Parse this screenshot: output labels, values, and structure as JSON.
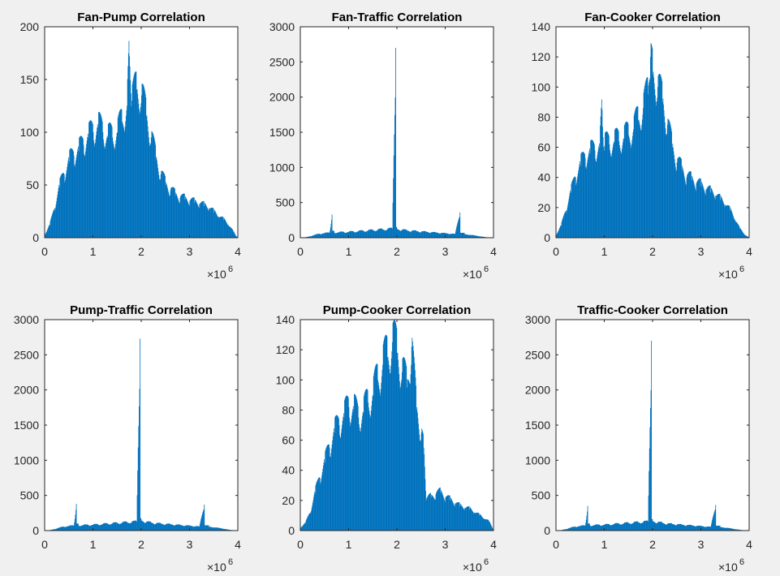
{
  "figure": {
    "background": "#f0f0f0",
    "bar_color": "#0072bd"
  },
  "chart_data": [
    {
      "type": "bar",
      "title": "Fan-Pump Correlation",
      "xlim": [
        0,
        4000000
      ],
      "ylim": [
        0,
        200
      ],
      "xticks": [
        0,
        1,
        2,
        3,
        4
      ],
      "yticks": [
        0,
        50,
        100,
        150,
        200
      ],
      "x_exponent": "6",
      "x": [
        0,
        100000,
        200000,
        300000,
        400000,
        500000,
        600000,
        700000,
        800000,
        900000,
        1000000,
        1100000,
        1200000,
        1300000,
        1400000,
        1500000,
        1600000,
        1700000,
        1750000,
        1800000,
        1900000,
        2000000,
        2100000,
        2200000,
        2300000,
        2400000,
        2500000,
        2600000,
        2700000,
        2800000,
        2900000,
        3000000,
        3100000,
        3200000,
        3300000,
        3400000,
        3500000,
        3600000,
        3700000,
        3800000,
        3900000,
        3950000
      ],
      "values": [
        3,
        12,
        28,
        48,
        60,
        72,
        78,
        82,
        88,
        95,
        100,
        105,
        100,
        95,
        95,
        100,
        110,
        125,
        172,
        130,
        140,
        135,
        115,
        95,
        75,
        60,
        50,
        45,
        40,
        38,
        36,
        35,
        33,
        32,
        30,
        28,
        24,
        20,
        17,
        12,
        6,
        2
      ]
    },
    {
      "type": "bar",
      "title": "Fan-Traffic Correlation",
      "xlim": [
        0,
        4000000
      ],
      "ylim": [
        0,
        3000
      ],
      "xticks": [
        0,
        1,
        2,
        3,
        4
      ],
      "yticks": [
        0,
        500,
        1000,
        1500,
        2000,
        2500,
        3000
      ],
      "x_exponent": "6",
      "x": [
        0,
        100000,
        200000,
        300000,
        400000,
        500000,
        600000,
        650000,
        700000,
        800000,
        900000,
        1000000,
        1100000,
        1200000,
        1300000,
        1400000,
        1500000,
        1600000,
        1700000,
        1800000,
        1900000,
        1970000,
        2000000,
        2100000,
        2200000,
        2300000,
        2400000,
        2500000,
        2600000,
        2700000,
        2800000,
        2900000,
        3000000,
        3100000,
        3200000,
        3300000,
        3400000,
        3500000,
        3600000,
        3700000,
        3800000,
        3900000
      ],
      "values": [
        0,
        5,
        20,
        40,
        55,
        62,
        70,
        330,
        72,
        75,
        78,
        80,
        85,
        90,
        95,
        100,
        105,
        110,
        115,
        120,
        125,
        2700,
        120,
        110,
        100,
        95,
        90,
        85,
        80,
        75,
        70,
        65,
        60,
        55,
        50,
        360,
        45,
        40,
        30,
        20,
        10,
        2
      ]
    },
    {
      "type": "bar",
      "title": "Fan-Cooker Correlation",
      "xlim": [
        0,
        4000000
      ],
      "ylim": [
        0,
        140
      ],
      "xticks": [
        0,
        1,
        2,
        3,
        4
      ],
      "yticks": [
        0,
        20,
        40,
        60,
        80,
        100,
        120,
        140
      ],
      "x_exponent": "6",
      "x": [
        0,
        100000,
        200000,
        300000,
        400000,
        500000,
        600000,
        700000,
        800000,
        900000,
        950000,
        1000000,
        1100000,
        1200000,
        1300000,
        1400000,
        1500000,
        1600000,
        1700000,
        1800000,
        1900000,
        1950000,
        2000000,
        2100000,
        2200000,
        2300000,
        2400000,
        2500000,
        2600000,
        2700000,
        2800000,
        2900000,
        3000000,
        3100000,
        3200000,
        3300000,
        3400000,
        3500000,
        3600000,
        3700000,
        3800000,
        3900000
      ],
      "values": [
        2,
        8,
        18,
        30,
        40,
        48,
        53,
        56,
        58,
        60,
        85,
        61,
        62,
        63,
        64,
        66,
        68,
        72,
        78,
        86,
        95,
        120,
        108,
        100,
        90,
        75,
        60,
        50,
        45,
        40,
        38,
        36,
        34,
        32,
        30,
        28,
        25,
        22,
        18,
        12,
        6,
        2
      ]
    },
    {
      "type": "bar",
      "title": "Pump-Traffic Correlation",
      "xlim": [
        0,
        4000000
      ],
      "ylim": [
        0,
        3000
      ],
      "xticks": [
        0,
        1,
        2,
        3,
        4
      ],
      "yticks": [
        0,
        500,
        1000,
        1500,
        2000,
        2500,
        3000
      ],
      "x_exponent": "6",
      "x": [
        0,
        100000,
        200000,
        300000,
        400000,
        500000,
        600000,
        650000,
        700000,
        800000,
        900000,
        1000000,
        1100000,
        1200000,
        1300000,
        1400000,
        1500000,
        1600000,
        1700000,
        1800000,
        1900000,
        1970000,
        2000000,
        2100000,
        2200000,
        2300000,
        2400000,
        2500000,
        2600000,
        2700000,
        2800000,
        2900000,
        3000000,
        3100000,
        3200000,
        3300000,
        3400000,
        3500000,
        3600000,
        3700000,
        3800000,
        3900000
      ],
      "values": [
        0,
        5,
        20,
        40,
        55,
        62,
        70,
        380,
        72,
        75,
        78,
        80,
        85,
        90,
        95,
        100,
        105,
        110,
        115,
        120,
        125,
        2730,
        140,
        120,
        110,
        100,
        95,
        90,
        85,
        80,
        75,
        70,
        65,
        60,
        55,
        370,
        50,
        45,
        35,
        25,
        12,
        3
      ]
    },
    {
      "type": "bar",
      "title": "Pump-Cooker Correlation",
      "xlim": [
        0,
        4000000
      ],
      "ylim": [
        0,
        140
      ],
      "xticks": [
        0,
        1,
        2,
        3,
        4
      ],
      "yticks": [
        0,
        20,
        40,
        60,
        80,
        100,
        120,
        140
      ],
      "x_exponent": "6",
      "x": [
        0,
        100000,
        200000,
        300000,
        400000,
        500000,
        600000,
        700000,
        800000,
        900000,
        1000000,
        1100000,
        1200000,
        1300000,
        1400000,
        1500000,
        1600000,
        1700000,
        1800000,
        1900000,
        2000000,
        2100000,
        2200000,
        2300000,
        2400000,
        2500000,
        2550000,
        2600000,
        2700000,
        2800000,
        2900000,
        3000000,
        3100000,
        3200000,
        3300000,
        3400000,
        3500000,
        3600000,
        3700000,
        3800000,
        3900000
      ],
      "values": [
        2,
        5,
        12,
        25,
        35,
        45,
        55,
        65,
        70,
        75,
        82,
        80,
        75,
        78,
        85,
        90,
        100,
        110,
        115,
        125,
        118,
        105,
        95,
        122,
        80,
        65,
        55,
        20,
        22,
        24,
        25,
        22,
        20,
        18,
        16,
        15,
        14,
        12,
        10,
        8,
        6
      ]
    },
    {
      "type": "bar",
      "title": "Traffic-Cooker Correlation",
      "xlim": [
        0,
        4000000
      ],
      "ylim": [
        0,
        3000
      ],
      "xticks": [
        0,
        1,
        2,
        3,
        4
      ],
      "yticks": [
        0,
        500,
        1000,
        1500,
        2000,
        2500,
        3000
      ],
      "x_exponent": "6",
      "x": [
        0,
        100000,
        200000,
        300000,
        400000,
        500000,
        600000,
        650000,
        700000,
        800000,
        900000,
        1000000,
        1100000,
        1200000,
        1300000,
        1400000,
        1500000,
        1600000,
        1700000,
        1800000,
        1900000,
        1970000,
        2000000,
        2100000,
        2200000,
        2300000,
        2400000,
        2500000,
        2600000,
        2700000,
        2800000,
        2900000,
        3000000,
        3100000,
        3200000,
        3300000,
        3400000,
        3500000,
        3600000,
        3700000,
        3800000,
        3900000
      ],
      "values": [
        0,
        5,
        20,
        40,
        55,
        62,
        70,
        350,
        72,
        75,
        78,
        80,
        85,
        90,
        95,
        100,
        105,
        110,
        115,
        120,
        125,
        2700,
        130,
        115,
        105,
        95,
        90,
        85,
        80,
        75,
        70,
        65,
        60,
        55,
        50,
        365,
        45,
        40,
        30,
        20,
        10,
        2
      ]
    }
  ]
}
